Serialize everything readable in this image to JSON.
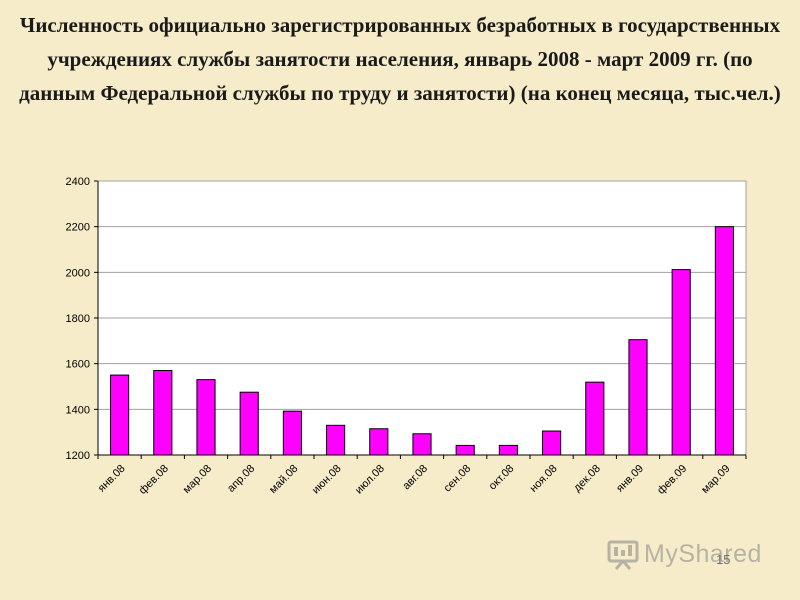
{
  "slide": {
    "title": "Численность официально зарегистрированных безработных в государственных учреждениях службы занятости населения, январь 2008 - март 2009 гг. (по данным Федеральной службы по труду и занятости) (на конец месяца, тыс.чел.)",
    "page_number": "15",
    "watermark_text": "MyShared"
  },
  "chart_data": {
    "type": "bar",
    "categories": [
      "янв.08",
      "фев.08",
      "мар.08",
      "апр.08",
      "май.08",
      "июн.08",
      "июл.08",
      "авг.08",
      "сен.08",
      "окт.08",
      "ноя.08",
      "дек.08",
      "янв.09",
      "фев.09",
      "мар.09"
    ],
    "values": [
      1550,
      1570,
      1530,
      1475,
      1392,
      1330,
      1315,
      1293,
      1242,
      1242,
      1305,
      1519,
      1705,
      2012,
      2200
    ],
    "title": "",
    "xlabel": "",
    "ylabel": "",
    "ylim": [
      1200,
      2400
    ],
    "yticks": [
      1200,
      1400,
      1600,
      1800,
      2000,
      2200,
      2400
    ],
    "grid": true,
    "legend": "none",
    "colors": {
      "bar_fill": "#ff00ff",
      "bar_stroke": "#000000",
      "plot_background": "#ffffff",
      "gridline": "#a0a0a0",
      "axis": "#000000"
    }
  }
}
